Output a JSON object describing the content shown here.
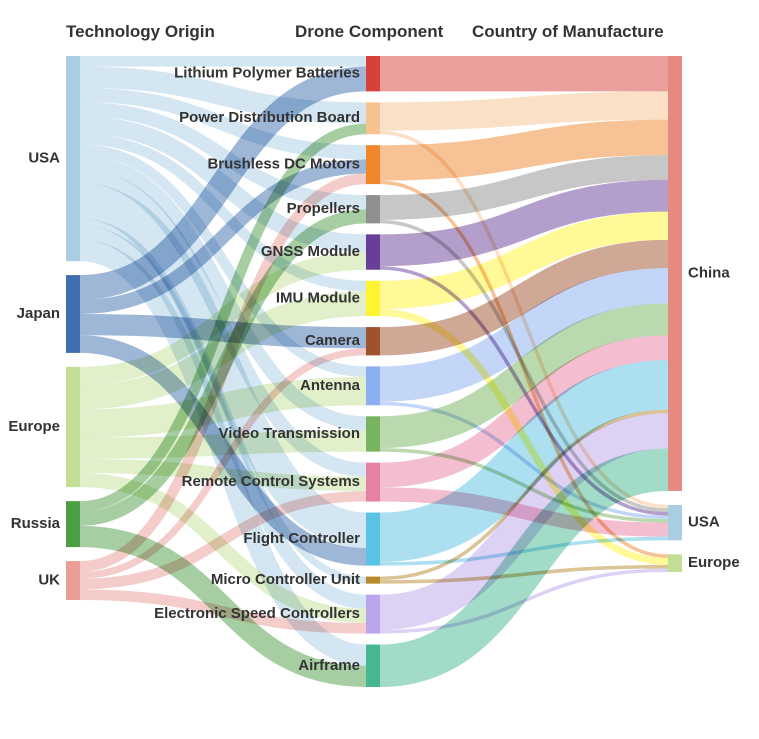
{
  "headers": {
    "origin": "Technology Origin",
    "component": "Drone Component",
    "country": "Country of Manufacture"
  },
  "origins": [
    {
      "id": "usa",
      "label": "USA",
      "color": "#a9cde3"
    },
    {
      "id": "japan",
      "label": "Japan",
      "color": "#3f6fb0"
    },
    {
      "id": "europe",
      "label": "Europe",
      "color": "#c3df95"
    },
    {
      "id": "russia",
      "label": "Russia",
      "color": "#4e9e46"
    },
    {
      "id": "uk",
      "label": "UK",
      "color": "#ea9c96"
    }
  ],
  "components": [
    {
      "id": "lipo",
      "label": "Lithium Polymer Batteries",
      "color": "#d8403a"
    },
    {
      "id": "pdb",
      "label": "Power Distribution Board",
      "color": "#f6c28d"
    },
    {
      "id": "motors",
      "label": "Brushless DC Motors",
      "color": "#f0862c"
    },
    {
      "id": "props",
      "label": "Propellers",
      "color": "#8f8f8f"
    },
    {
      "id": "gnss",
      "label": "GNSS Module",
      "color": "#6a3d99"
    },
    {
      "id": "imu",
      "label": "IMU Module",
      "color": "#fff431"
    },
    {
      "id": "camera",
      "label": "Camera",
      "color": "#a0522d"
    },
    {
      "id": "antenna",
      "label": "Antenna",
      "color": "#8aaeef"
    },
    {
      "id": "video",
      "label": "Video Transmission",
      "color": "#78b460"
    },
    {
      "id": "rc",
      "label": "Remote Control Systems",
      "color": "#e880a2"
    },
    {
      "id": "fc",
      "label": "Flight Controller",
      "color": "#5ac2e4"
    },
    {
      "id": "mcu",
      "label": "Micro Controller Unit",
      "color": "#b78a2e"
    },
    {
      "id": "esc",
      "label": "Electronic Speed Controllers",
      "color": "#bca5ea"
    },
    {
      "id": "airframe",
      "label": "Airframe",
      "color": "#45b892"
    }
  ],
  "countries": [
    {
      "id": "china",
      "label": "China",
      "color": "#e58a80"
    },
    {
      "id": "cusa",
      "label": "USA",
      "color": "#a9cde3"
    },
    {
      "id": "ceurope",
      "label": "Europe",
      "color": "#c3df95"
    }
  ],
  "links_in": [
    {
      "from": "usa",
      "to": "lipo",
      "value": 3
    },
    {
      "from": "usa",
      "to": "pdb",
      "value": 6
    },
    {
      "from": "usa",
      "to": "motors",
      "value": 4
    },
    {
      "from": "usa",
      "to": "props",
      "value": 4
    },
    {
      "from": "usa",
      "to": "gnss",
      "value": 5
    },
    {
      "from": "usa",
      "to": "imu",
      "value": 3
    },
    {
      "from": "usa",
      "to": "antenna",
      "value": 3
    },
    {
      "from": "usa",
      "to": "video",
      "value": 4
    },
    {
      "from": "usa",
      "to": "rc",
      "value": 4
    },
    {
      "from": "usa",
      "to": "fc",
      "value": 10
    },
    {
      "from": "usa",
      "to": "mcu",
      "value": 2
    },
    {
      "from": "usa",
      "to": "esc",
      "value": 4
    },
    {
      "from": "usa",
      "to": "airframe",
      "value": 6
    },
    {
      "from": "japan",
      "to": "lipo",
      "value": 7
    },
    {
      "from": "japan",
      "to": "motors",
      "value": 4
    },
    {
      "from": "japan",
      "to": "camera",
      "value": 6
    },
    {
      "from": "japan",
      "to": "fc",
      "value": 5
    },
    {
      "from": "europe",
      "to": "gnss",
      "value": 5
    },
    {
      "from": "europe",
      "to": "imu",
      "value": 7
    },
    {
      "from": "europe",
      "to": "antenna",
      "value": 8
    },
    {
      "from": "europe",
      "to": "video",
      "value": 6
    },
    {
      "from": "europe",
      "to": "rc",
      "value": 4
    },
    {
      "from": "europe",
      "to": "esc",
      "value": 4
    },
    {
      "from": "russia",
      "to": "pdb",
      "value": 3
    },
    {
      "from": "russia",
      "to": "props",
      "value": 4
    },
    {
      "from": "russia",
      "to": "airframe",
      "value": 6
    },
    {
      "from": "uk",
      "to": "motors",
      "value": 3
    },
    {
      "from": "uk",
      "to": "camera",
      "value": 2
    },
    {
      "from": "uk",
      "to": "rc",
      "value": 3
    },
    {
      "from": "uk",
      "to": "esc",
      "value": 3
    }
  ],
  "links_out": [
    {
      "from": "lipo",
      "to": "china",
      "value": 10
    },
    {
      "from": "pdb",
      "to": "china",
      "value": 8
    },
    {
      "from": "pdb",
      "to": "cusa",
      "value": 1
    },
    {
      "from": "motors",
      "to": "china",
      "value": 10
    },
    {
      "from": "motors",
      "to": "ceurope",
      "value": 1
    },
    {
      "from": "props",
      "to": "china",
      "value": 7
    },
    {
      "from": "props",
      "to": "cusa",
      "value": 1
    },
    {
      "from": "gnss",
      "to": "china",
      "value": 9
    },
    {
      "from": "gnss",
      "to": "cusa",
      "value": 1
    },
    {
      "from": "imu",
      "to": "china",
      "value": 8
    },
    {
      "from": "imu",
      "to": "ceurope",
      "value": 2
    },
    {
      "from": "camera",
      "to": "china",
      "value": 8
    },
    {
      "from": "antenna",
      "to": "china",
      "value": 10
    },
    {
      "from": "antenna",
      "to": "cusa",
      "value": 1
    },
    {
      "from": "video",
      "to": "china",
      "value": 9
    },
    {
      "from": "video",
      "to": "cusa",
      "value": 1
    },
    {
      "from": "rc",
      "to": "china",
      "value": 7
    },
    {
      "from": "rc",
      "to": "cusa",
      "value": 4
    },
    {
      "from": "fc",
      "to": "china",
      "value": 14
    },
    {
      "from": "fc",
      "to": "cusa",
      "value": 1
    },
    {
      "from": "mcu",
      "to": "china",
      "value": 1
    },
    {
      "from": "mcu",
      "to": "ceurope",
      "value": 1
    },
    {
      "from": "esc",
      "to": "china",
      "value": 10
    },
    {
      "from": "esc",
      "to": "ceurope",
      "value": 1
    },
    {
      "from": "airframe",
      "to": "china",
      "value": 12
    }
  ]
}
